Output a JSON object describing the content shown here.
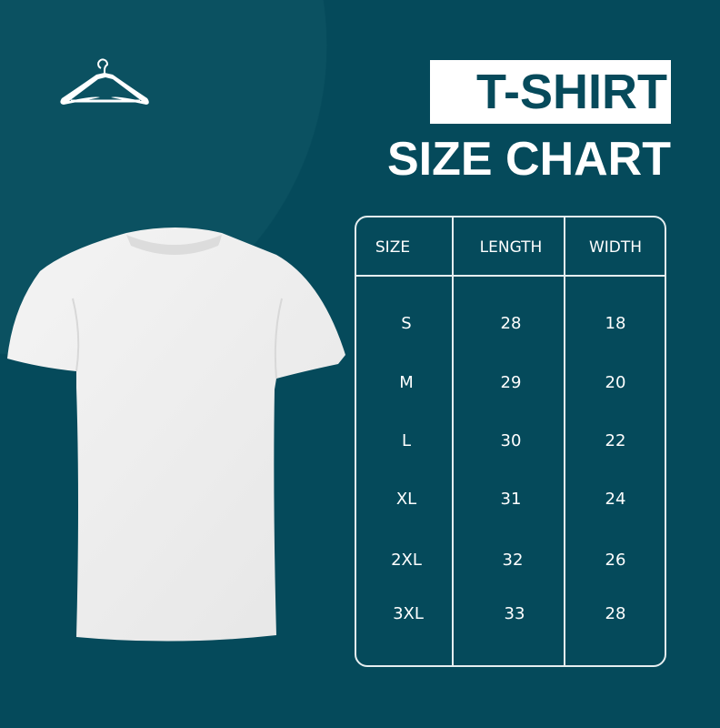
{
  "title": {
    "line1": "T-SHIRT",
    "line2": "SIZE CHART"
  },
  "table": {
    "headers": [
      "SIZE",
      "LENGTH",
      "WIDTH"
    ],
    "rows": [
      [
        "S",
        "28",
        "18"
      ],
      [
        "M",
        "29",
        "20"
      ],
      [
        "L",
        "30",
        "22"
      ],
      [
        "XL",
        "31",
        "24"
      ],
      [
        "2XL",
        "32",
        "26"
      ],
      [
        "3XL",
        "33",
        "28"
      ]
    ]
  },
  "colors": {
    "background": "#054a5b",
    "accent": "#ffffff",
    "title_text": "#064a5b"
  },
  "icons": [
    "hanger-icon",
    "tshirt-image"
  ]
}
